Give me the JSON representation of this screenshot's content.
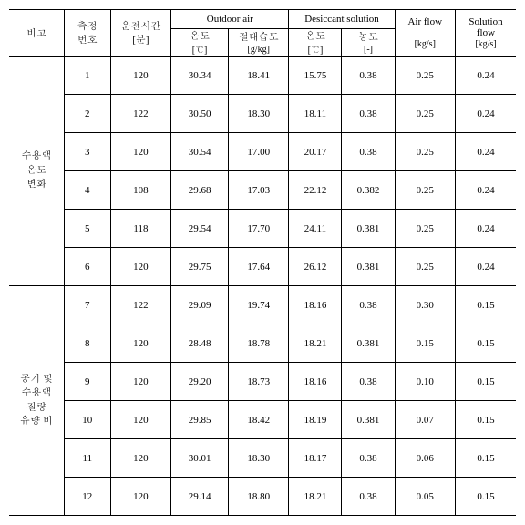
{
  "headers": {
    "bigo": "비고",
    "meas_no": "측정\n번호",
    "run_time": "운전시간\n[분]",
    "outdoor_air": "Outdoor air",
    "desiccant_solution": "Desiccant solution",
    "air_flow": "Air flow",
    "air_flow_unit": "[kg/s]",
    "solution_flow": "Solution\nflow",
    "solution_flow_unit": "[kg/s]",
    "oa_temp": "온도\n[℃]",
    "oa_hum": "절대습도\n[g/kg]",
    "ds_temp": "온도\n[℃]",
    "ds_conc": "농도\n[-]"
  },
  "groups": [
    {
      "label": "수용액\n온도\n변화",
      "rows": [
        {
          "no": "1",
          "time": "120",
          "oat": "30.34",
          "oah": "18.41",
          "dst": "15.75",
          "dsc": "0.38",
          "af": "0.25",
          "sf": "0.24"
        },
        {
          "no": "2",
          "time": "122",
          "oat": "30.50",
          "oah": "18.30",
          "dst": "18.11",
          "dsc": "0.38",
          "af": "0.25",
          "sf": "0.24"
        },
        {
          "no": "3",
          "time": "120",
          "oat": "30.54",
          "oah": "17.00",
          "dst": "20.17",
          "dsc": "0.38",
          "af": "0.25",
          "sf": "0.24"
        },
        {
          "no": "4",
          "time": "108",
          "oat": "29.68",
          "oah": "17.03",
          "dst": "22.12",
          "dsc": "0.382",
          "af": "0.25",
          "sf": "0.24"
        },
        {
          "no": "5",
          "time": "118",
          "oat": "29.54",
          "oah": "17.70",
          "dst": "24.11",
          "dsc": "0.381",
          "af": "0.25",
          "sf": "0.24"
        },
        {
          "no": "6",
          "time": "120",
          "oat": "29.75",
          "oah": "17.64",
          "dst": "26.12",
          "dsc": "0.381",
          "af": "0.25",
          "sf": "0.24"
        }
      ]
    },
    {
      "label": "공기 및\n수용액\n질량\n유량 비",
      "rows": [
        {
          "no": "7",
          "time": "122",
          "oat": "29.09",
          "oah": "19.74",
          "dst": "18.16",
          "dsc": "0.38",
          "af": "0.30",
          "sf": "0.15"
        },
        {
          "no": "8",
          "time": "120",
          "oat": "28.48",
          "oah": "18.78",
          "dst": "18.21",
          "dsc": "0.381",
          "af": "0.15",
          "sf": "0.15"
        },
        {
          "no": "9",
          "time": "120",
          "oat": "29.20",
          "oah": "18.73",
          "dst": "18.16",
          "dsc": "0.38",
          "af": "0.10",
          "sf": "0.15"
        },
        {
          "no": "10",
          "time": "120",
          "oat": "29.85",
          "oah": "18.42",
          "dst": "18.19",
          "dsc": "0.381",
          "af": "0.07",
          "sf": "0.15"
        },
        {
          "no": "11",
          "time": "120",
          "oat": "30.01",
          "oah": "18.30",
          "dst": "18.17",
          "dsc": "0.38",
          "af": "0.06",
          "sf": "0.15"
        },
        {
          "no": "12",
          "time": "120",
          "oat": "29.14",
          "oah": "18.80",
          "dst": "18.21",
          "dsc": "0.38",
          "af": "0.05",
          "sf": "0.15"
        }
      ]
    }
  ]
}
